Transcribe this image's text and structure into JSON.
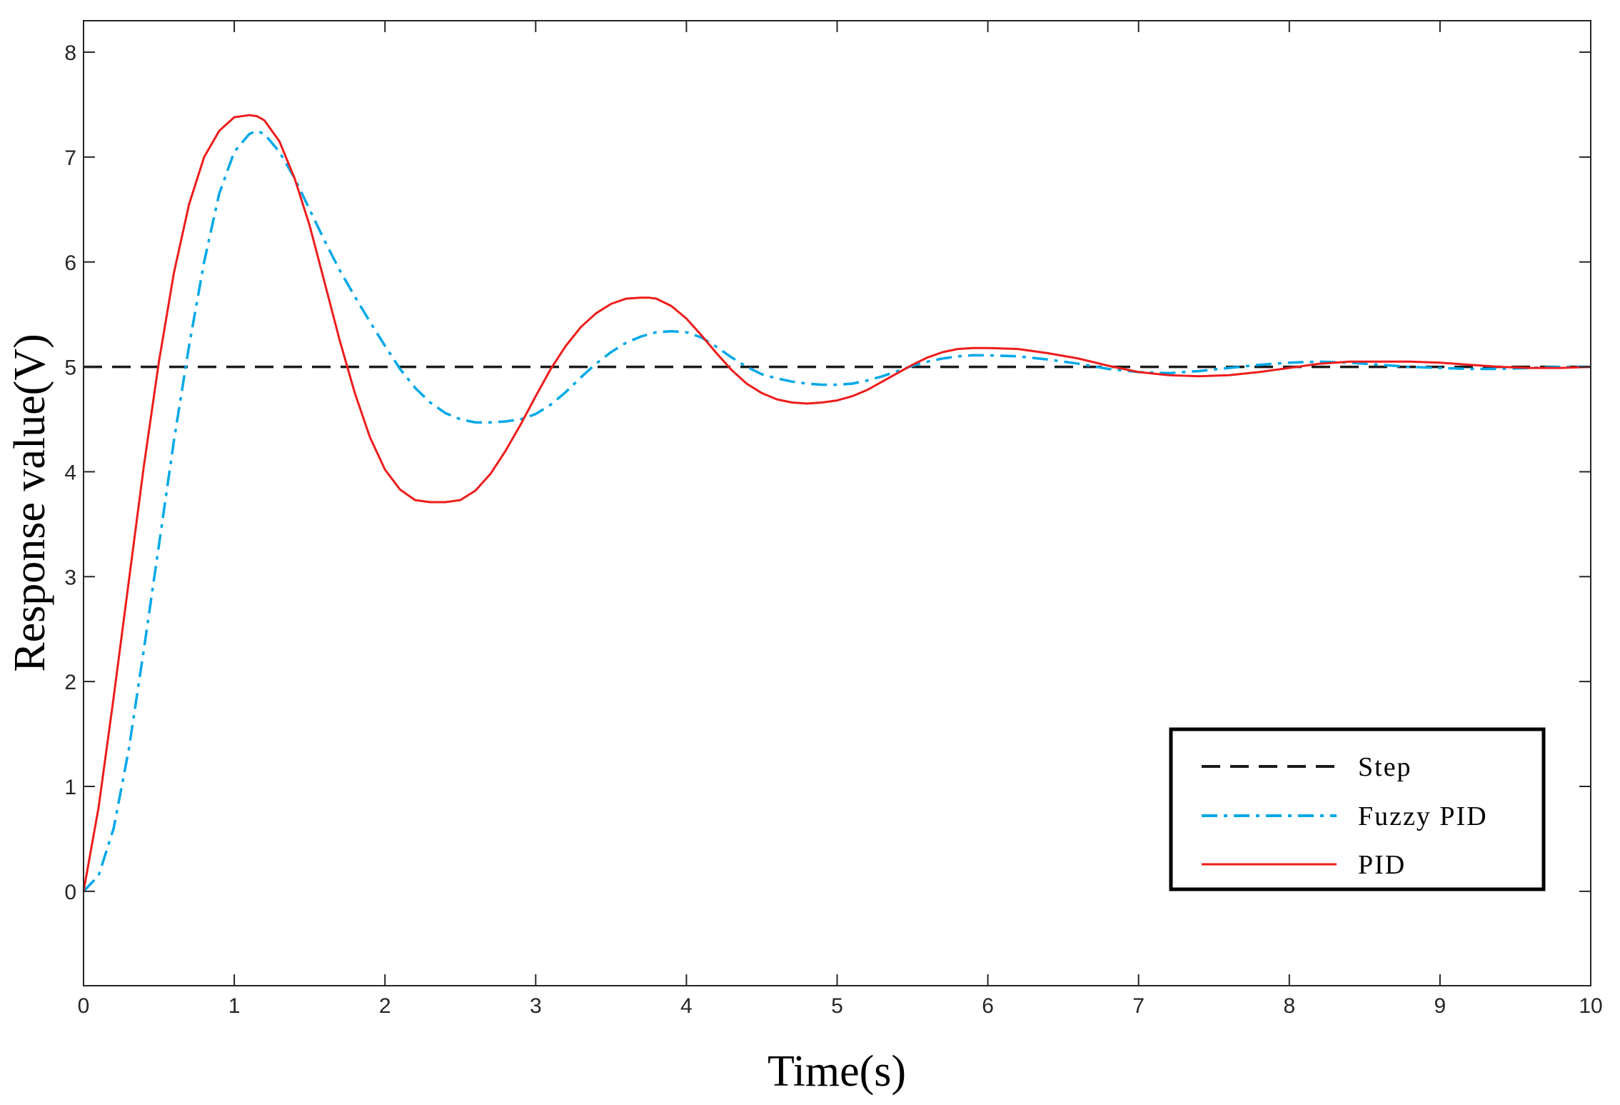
{
  "chart_data": {
    "type": "line",
    "title": "",
    "xlabel": "Time(s)",
    "ylabel": "Response value(V)",
    "xlim": [
      0,
      10
    ],
    "ylim": [
      -0.9,
      8.3
    ],
    "xticks": [
      0,
      1,
      2,
      3,
      4,
      5,
      6,
      7,
      8,
      9,
      10
    ],
    "yticks": [
      0,
      1,
      2,
      3,
      4,
      5,
      6,
      7,
      8
    ],
    "grid": false,
    "legend_position": "bottom-right",
    "series": [
      {
        "name": "Step",
        "color": "#1a1a1a",
        "style": "dashed",
        "x": [
          0,
          10
        ],
        "y": [
          5,
          5
        ]
      },
      {
        "name": "Fuzzy PID",
        "color": "#00a8e8",
        "style": "dashdot",
        "x": [
          0,
          0.1,
          0.2,
          0.3,
          0.4,
          0.5,
          0.6,
          0.7,
          0.8,
          0.9,
          1.0,
          1.1,
          1.15,
          1.2,
          1.3,
          1.4,
          1.5,
          1.6,
          1.7,
          1.8,
          1.9,
          2.0,
          2.1,
          2.2,
          2.3,
          2.4,
          2.5,
          2.6,
          2.7,
          2.8,
          2.9,
          3.0,
          3.1,
          3.2,
          3.3,
          3.4,
          3.5,
          3.6,
          3.7,
          3.8,
          3.9,
          4.0,
          4.1,
          4.2,
          4.3,
          4.4,
          4.5,
          4.6,
          4.7,
          4.8,
          4.9,
          5.0,
          5.1,
          5.2,
          5.3,
          5.4,
          5.5,
          5.6,
          5.7,
          5.8,
          5.9,
          6.0,
          6.2,
          6.4,
          6.6,
          6.8,
          7.0,
          7.2,
          7.4,
          7.6,
          7.8,
          8.0,
          8.2,
          8.4,
          8.6,
          8.8,
          9.0,
          9.2,
          9.4,
          9.6,
          9.8,
          10.0
        ],
        "y": [
          0,
          0.15,
          0.6,
          1.35,
          2.3,
          3.3,
          4.3,
          5.2,
          6.0,
          6.65,
          7.05,
          7.22,
          7.25,
          7.22,
          7.05,
          6.8,
          6.5,
          6.2,
          5.92,
          5.67,
          5.43,
          5.2,
          4.98,
          4.8,
          4.66,
          4.56,
          4.5,
          4.47,
          4.47,
          4.48,
          4.5,
          4.55,
          4.64,
          4.76,
          4.9,
          5.03,
          5.14,
          5.23,
          5.29,
          5.33,
          5.34,
          5.33,
          5.28,
          5.19,
          5.09,
          5.0,
          4.93,
          4.89,
          4.86,
          4.84,
          4.83,
          4.83,
          4.84,
          4.87,
          4.91,
          4.96,
          5.01,
          5.05,
          5.08,
          5.1,
          5.11,
          5.11,
          5.1,
          5.07,
          5.03,
          4.98,
          4.95,
          4.94,
          4.96,
          4.99,
          5.02,
          5.04,
          5.05,
          5.04,
          5.02,
          5.0,
          4.99,
          4.98,
          4.98,
          4.99,
          5.0,
          5.0
        ]
      },
      {
        "name": "PID",
        "color": "#ee1c1c",
        "style": "solid",
        "x": [
          0,
          0.1,
          0.2,
          0.3,
          0.4,
          0.5,
          0.6,
          0.7,
          0.8,
          0.9,
          1.0,
          1.1,
          1.15,
          1.2,
          1.3,
          1.4,
          1.5,
          1.6,
          1.7,
          1.8,
          1.9,
          2.0,
          2.1,
          2.2,
          2.3,
          2.4,
          2.45,
          2.5,
          2.6,
          2.7,
          2.8,
          2.9,
          3.0,
          3.1,
          3.2,
          3.3,
          3.4,
          3.5,
          3.6,
          3.7,
          3.75,
          3.8,
          3.9,
          4.0,
          4.1,
          4.2,
          4.3,
          4.4,
          4.5,
          4.6,
          4.7,
          4.8,
          4.9,
          5.0,
          5.1,
          5.2,
          5.3,
          5.4,
          5.5,
          5.6,
          5.7,
          5.8,
          5.9,
          6.0,
          6.2,
          6.4,
          6.6,
          6.8,
          7.0,
          7.2,
          7.4,
          7.6,
          7.8,
          8.0,
          8.2,
          8.4,
          8.6,
          8.8,
          9.0,
          9.2,
          9.4,
          9.6,
          9.8,
          10.0
        ],
        "y": [
          0,
          0.8,
          1.85,
          2.95,
          4.05,
          5.05,
          5.9,
          6.55,
          7.0,
          7.25,
          7.38,
          7.4,
          7.39,
          7.35,
          7.15,
          6.8,
          6.35,
          5.8,
          5.25,
          4.75,
          4.33,
          4.02,
          3.83,
          3.73,
          3.71,
          3.71,
          3.72,
          3.73,
          3.82,
          3.98,
          4.2,
          4.45,
          4.72,
          4.98,
          5.2,
          5.38,
          5.51,
          5.6,
          5.65,
          5.66,
          5.66,
          5.65,
          5.58,
          5.46,
          5.3,
          5.13,
          4.97,
          4.84,
          4.75,
          4.69,
          4.66,
          4.65,
          4.66,
          4.68,
          4.72,
          4.78,
          4.86,
          4.94,
          5.02,
          5.09,
          5.14,
          5.17,
          5.18,
          5.18,
          5.17,
          5.13,
          5.08,
          5.01,
          4.95,
          4.92,
          4.91,
          4.92,
          4.95,
          4.99,
          5.03,
          5.05,
          5.05,
          5.05,
          5.04,
          5.02,
          5.0,
          4.99,
          4.99,
          5.0
        ]
      }
    ]
  }
}
